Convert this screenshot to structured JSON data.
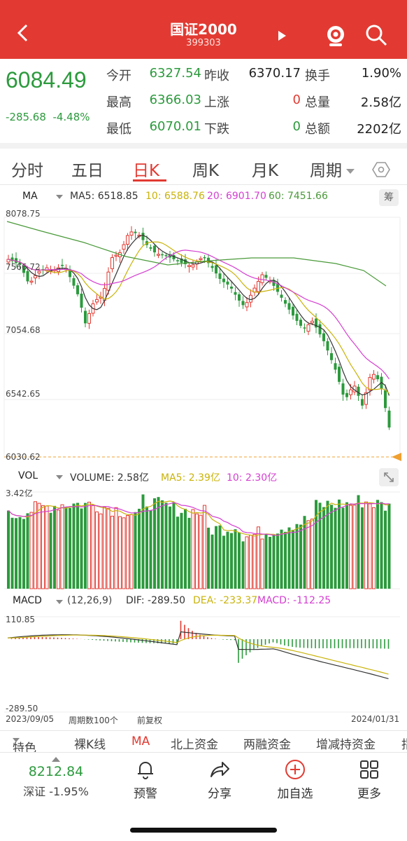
{
  "header": {
    "title": "国证2000",
    "code": "399303"
  },
  "quote": {
    "price": "6084.49",
    "change": "-285.68",
    "change_pct": "-4.48%",
    "rows": [
      [
        {
          "label": "今开",
          "value": "6327.54",
          "color": "green"
        },
        {
          "label": "昨收",
          "value": "6370.17",
          "color": "dark"
        },
        {
          "label": "换手",
          "value": "1.90%",
          "color": "dark"
        }
      ],
      [
        {
          "label": "最高",
          "value": "6366.03",
          "color": "green"
        },
        {
          "label": "上涨",
          "value": "0",
          "color": "red"
        },
        {
          "label": "总量",
          "value": "2.58亿",
          "color": "dark"
        }
      ],
      [
        {
          "label": "最低",
          "value": "6070.01",
          "color": "green"
        },
        {
          "label": "下跌",
          "value": "0",
          "color": "green"
        },
        {
          "label": "总额",
          "value": "2202亿",
          "color": "dark"
        }
      ]
    ]
  },
  "tabs": [
    "分时",
    "五日",
    "日K",
    "周K",
    "月K",
    "周期"
  ],
  "ma_bar": {
    "name": "MA",
    "ma5": "MA5: 6518.85",
    "ma10": "10: 6588.76",
    "ma20": "20: 6901.70",
    "ma60": "60: 7451.66",
    "chip_label": "筹"
  },
  "kline_axis": [
    "8078.75",
    "7566.72",
    "7054.68",
    "6542.65",
    "6030.62"
  ],
  "vol_bar": {
    "name": "VOL",
    "volume": "VOLUME: 2.58亿",
    "ma5": "MA5: 2.39亿",
    "ma10": "10: 2.30亿",
    "axis_max": "3.42亿"
  },
  "macd_bar": {
    "name": "MACD",
    "params": "(12,26,9)",
    "dif": "DIF: -289.50",
    "dea": "DEA: -233.37",
    "macd": "MACD: -112.25",
    "axis_max": "110.85",
    "axis_min": "-289.50"
  },
  "dates": {
    "start": "2023/09/05",
    "period_count": "周期数100个",
    "adjust": "前复权",
    "end": "2024/01/31"
  },
  "indicators": [
    "特色",
    "裸K线",
    "MA",
    "北上资金",
    "两融资金",
    "增减持资金",
    "指"
  ],
  "bottom": {
    "index_value": "8212.84",
    "index_name": "深证 -1.95%",
    "buttons": [
      {
        "icon": "bell-icon",
        "label": "预警"
      },
      {
        "icon": "share-icon",
        "label": "分享"
      },
      {
        "icon": "add-circle-icon",
        "label": "加自选"
      },
      {
        "icon": "grid-icon",
        "label": "更多"
      }
    ]
  },
  "colors": {
    "up": "#e23a32",
    "down": "#2c9a3d",
    "ma5": "#333333",
    "ma10": "#c9b30a",
    "ma20": "#d43fd1",
    "ma60": "#4a9a3a"
  }
}
